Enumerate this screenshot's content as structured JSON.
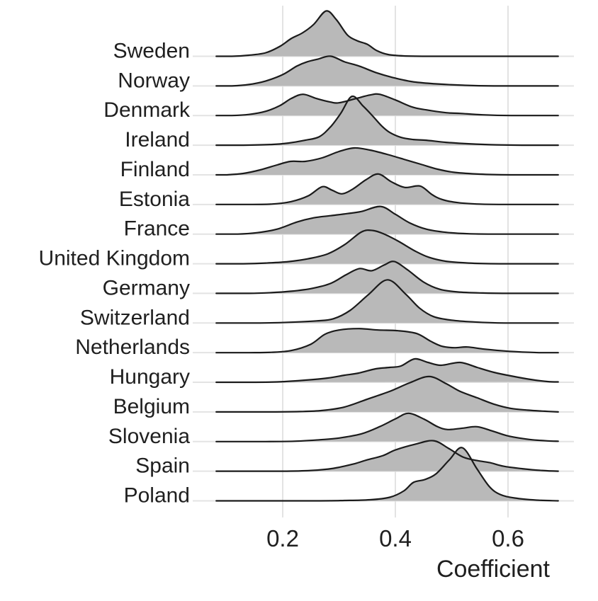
{
  "chart_data": {
    "type": "ridgeline",
    "title": "",
    "xlabel": "Coefficient",
    "ylabel": "",
    "x_axis": {
      "label": "Coefficient",
      "ticks": [
        {
          "label": "0.2",
          "value": 0.2
        },
        {
          "label": "0.4",
          "value": 0.4
        },
        {
          "label": "0.6",
          "value": 0.6
        }
      ],
      "curve_range": [
        0.082,
        0.689
      ],
      "grid": true
    },
    "legend": "none",
    "density_units": "pixel height at 844px render; one row spacing = 41.87px",
    "row_spacing_px": 41.87,
    "countries": [
      {
        "name": "Sweden",
        "peak_coefficient": 0.28,
        "density": [
          [
            0.082,
            0
          ],
          [
            0.11,
            0
          ],
          [
            0.14,
            1.5
          ],
          [
            0.17,
            5
          ],
          [
            0.195,
            14
          ],
          [
            0.215,
            25
          ],
          [
            0.235,
            33
          ],
          [
            0.255,
            45
          ],
          [
            0.277,
            64
          ],
          [
            0.295,
            52
          ],
          [
            0.315,
            30
          ],
          [
            0.332,
            22
          ],
          [
            0.35,
            17
          ],
          [
            0.367,
            8
          ],
          [
            0.387,
            2.5
          ],
          [
            0.415,
            0.5
          ],
          [
            0.46,
            0
          ],
          [
            0.57,
            0
          ],
          [
            0.689,
            0
          ]
        ]
      },
      {
        "name": "Norway",
        "peak_coefficient": 0.285,
        "density": [
          [
            0.082,
            0
          ],
          [
            0.11,
            0
          ],
          [
            0.14,
            2
          ],
          [
            0.17,
            7
          ],
          [
            0.2,
            16
          ],
          [
            0.225,
            28
          ],
          [
            0.243,
            34
          ],
          [
            0.263,
            38
          ],
          [
            0.285,
            42
          ],
          [
            0.31,
            34
          ],
          [
            0.336,
            28
          ],
          [
            0.365,
            19
          ],
          [
            0.395,
            12
          ],
          [
            0.43,
            6
          ],
          [
            0.47,
            3
          ],
          [
            0.52,
            1
          ],
          [
            0.575,
            0
          ],
          [
            0.689,
            0
          ]
        ]
      },
      {
        "name": "Denmark",
        "peak_coefficient": 0.24,
        "density": [
          [
            0.082,
            0
          ],
          [
            0.11,
            0
          ],
          [
            0.14,
            1.5
          ],
          [
            0.17,
            6
          ],
          [
            0.195,
            14
          ],
          [
            0.215,
            24
          ],
          [
            0.236,
            30
          ],
          [
            0.26,
            24
          ],
          [
            0.285,
            19
          ],
          [
            0.3,
            18
          ],
          [
            0.33,
            24
          ],
          [
            0.355,
            29
          ],
          [
            0.372,
            30
          ],
          [
            0.4,
            22
          ],
          [
            0.43,
            12
          ],
          [
            0.455,
            8
          ],
          [
            0.49,
            4
          ],
          [
            0.515,
            3
          ],
          [
            0.555,
            1
          ],
          [
            0.605,
            0
          ],
          [
            0.689,
            0
          ]
        ]
      },
      {
        "name": "Ireland",
        "peak_coefficient": 0.325,
        "density": [
          [
            0.082,
            0
          ],
          [
            0.13,
            0
          ],
          [
            0.18,
            1
          ],
          [
            0.21,
            3
          ],
          [
            0.24,
            7
          ],
          [
            0.265,
            12
          ],
          [
            0.285,
            26
          ],
          [
            0.303,
            45
          ],
          [
            0.323,
            69
          ],
          [
            0.343,
            55
          ],
          [
            0.36,
            41
          ],
          [
            0.376,
            27
          ],
          [
            0.39,
            18
          ],
          [
            0.41,
            11
          ],
          [
            0.432,
            8
          ],
          [
            0.455,
            7
          ],
          [
            0.49,
            4
          ],
          [
            0.53,
            2
          ],
          [
            0.58,
            0.5
          ],
          [
            0.625,
            0
          ],
          [
            0.689,
            0
          ]
        ]
      },
      {
        "name": "Finland",
        "peak_coefficient": 0.33,
        "density": [
          [
            0.082,
            0
          ],
          [
            0.1,
            0
          ],
          [
            0.13,
            2
          ],
          [
            0.16,
            7
          ],
          [
            0.19,
            14
          ],
          [
            0.214,
            19
          ],
          [
            0.24,
            19
          ],
          [
            0.27,
            24
          ],
          [
            0.3,
            33
          ],
          [
            0.327,
            38
          ],
          [
            0.355,
            35
          ],
          [
            0.385,
            29
          ],
          [
            0.415,
            22
          ],
          [
            0.445,
            15
          ],
          [
            0.475,
            8
          ],
          [
            0.505,
            3.5
          ],
          [
            0.55,
            1
          ],
          [
            0.605,
            0
          ],
          [
            0.689,
            0
          ]
        ]
      },
      {
        "name": "Estonia",
        "peak_coefficient": 0.37,
        "density": [
          [
            0.082,
            0
          ],
          [
            0.14,
            0
          ],
          [
            0.18,
            0.5
          ],
          [
            0.215,
            4
          ],
          [
            0.245,
            12
          ],
          [
            0.27,
            25
          ],
          [
            0.288,
            20
          ],
          [
            0.305,
            15
          ],
          [
            0.325,
            22
          ],
          [
            0.348,
            35
          ],
          [
            0.37,
            43
          ],
          [
            0.393,
            32
          ],
          [
            0.417,
            24
          ],
          [
            0.444,
            26
          ],
          [
            0.465,
            14
          ],
          [
            0.483,
            7
          ],
          [
            0.512,
            2.5
          ],
          [
            0.55,
            0.5
          ],
          [
            0.6,
            0
          ],
          [
            0.689,
            0
          ]
        ]
      },
      {
        "name": "France",
        "peak_coefficient": 0.375,
        "density": [
          [
            0.082,
            0
          ],
          [
            0.12,
            0
          ],
          [
            0.155,
            2
          ],
          [
            0.19,
            7
          ],
          [
            0.225,
            17
          ],
          [
            0.255,
            23
          ],
          [
            0.285,
            26
          ],
          [
            0.315,
            29
          ],
          [
            0.34,
            32
          ],
          [
            0.374,
            39
          ],
          [
            0.4,
            28
          ],
          [
            0.425,
            16
          ],
          [
            0.455,
            7
          ],
          [
            0.49,
            2.5
          ],
          [
            0.53,
            0.5
          ],
          [
            0.575,
            0
          ],
          [
            0.689,
            0
          ]
        ]
      },
      {
        "name": "United Kingdom",
        "peak_coefficient": 0.355,
        "density": [
          [
            0.082,
            0
          ],
          [
            0.13,
            0
          ],
          [
            0.17,
            1
          ],
          [
            0.21,
            3
          ],
          [
            0.245,
            7
          ],
          [
            0.28,
            14
          ],
          [
            0.31,
            27
          ],
          [
            0.34,
            45
          ],
          [
            0.36,
            47
          ],
          [
            0.38,
            42
          ],
          [
            0.405,
            32
          ],
          [
            0.435,
            18
          ],
          [
            0.46,
            9
          ],
          [
            0.49,
            3.5
          ],
          [
            0.53,
            1
          ],
          [
            0.585,
            0
          ],
          [
            0.689,
            0
          ]
        ]
      },
      {
        "name": "Germany",
        "peak_coefficient": 0.4,
        "density": [
          [
            0.082,
            0
          ],
          [
            0.14,
            0
          ],
          [
            0.18,
            1
          ],
          [
            0.215,
            3
          ],
          [
            0.252,
            7
          ],
          [
            0.285,
            14
          ],
          [
            0.312,
            26
          ],
          [
            0.336,
            35
          ],
          [
            0.358,
            32
          ],
          [
            0.38,
            40
          ],
          [
            0.398,
            45
          ],
          [
            0.422,
            33
          ],
          [
            0.45,
            16
          ],
          [
            0.478,
            6
          ],
          [
            0.51,
            2
          ],
          [
            0.555,
            0.5
          ],
          [
            0.605,
            0
          ],
          [
            0.689,
            0
          ]
        ]
      },
      {
        "name": "Switzerland",
        "peak_coefficient": 0.385,
        "density": [
          [
            0.082,
            0
          ],
          [
            0.16,
            0
          ],
          [
            0.21,
            1
          ],
          [
            0.26,
            3
          ],
          [
            0.29,
            6
          ],
          [
            0.32,
            18
          ],
          [
            0.352,
            40
          ],
          [
            0.386,
            61
          ],
          [
            0.418,
            41
          ],
          [
            0.443,
            21
          ],
          [
            0.468,
            9
          ],
          [
            0.5,
            4
          ],
          [
            0.54,
            1.5
          ],
          [
            0.595,
            0
          ],
          [
            0.689,
            0
          ]
        ]
      },
      {
        "name": "Netherlands",
        "peak_coefficient": 0.335,
        "density": [
          [
            0.082,
            0
          ],
          [
            0.14,
            0
          ],
          [
            0.18,
            0.5
          ],
          [
            0.215,
            3
          ],
          [
            0.25,
            12
          ],
          [
            0.275,
            26
          ],
          [
            0.3,
            32
          ],
          [
            0.335,
            34
          ],
          [
            0.37,
            32
          ],
          [
            0.405,
            31
          ],
          [
            0.438,
            27
          ],
          [
            0.463,
            16
          ],
          [
            0.483,
            9
          ],
          [
            0.505,
            7
          ],
          [
            0.528,
            8
          ],
          [
            0.558,
            5
          ],
          [
            0.6,
            2
          ],
          [
            0.655,
            0
          ],
          [
            0.689,
            0
          ]
        ]
      },
      {
        "name": "Hungary",
        "peak_coefficient": 0.435,
        "density": [
          [
            0.082,
            0
          ],
          [
            0.14,
            0
          ],
          [
            0.19,
            0.5
          ],
          [
            0.24,
            3
          ],
          [
            0.28,
            6
          ],
          [
            0.31,
            10
          ],
          [
            0.335,
            13
          ],
          [
            0.365,
            19
          ],
          [
            0.39,
            21
          ],
          [
            0.41,
            23
          ],
          [
            0.434,
            33
          ],
          [
            0.458,
            28
          ],
          [
            0.481,
            24
          ],
          [
            0.515,
            28
          ],
          [
            0.545,
            21
          ],
          [
            0.575,
            14
          ],
          [
            0.605,
            9
          ],
          [
            0.64,
            4
          ],
          [
            0.67,
            1
          ],
          [
            0.689,
            0.5
          ]
        ]
      },
      {
        "name": "Belgium",
        "peak_coefficient": 0.46,
        "density": [
          [
            0.082,
            0
          ],
          [
            0.18,
            0
          ],
          [
            0.23,
            0.5
          ],
          [
            0.27,
            2
          ],
          [
            0.31,
            7
          ],
          [
            0.35,
            18
          ],
          [
            0.39,
            29
          ],
          [
            0.425,
            41
          ],
          [
            0.46,
            50
          ],
          [
            0.49,
            40
          ],
          [
            0.515,
            29
          ],
          [
            0.545,
            20
          ],
          [
            0.575,
            11
          ],
          [
            0.605,
            5
          ],
          [
            0.635,
            2.5
          ],
          [
            0.665,
            1
          ],
          [
            0.689,
            0
          ]
        ]
      },
      {
        "name": "Slovenia",
        "peak_coefficient": 0.425,
        "density": [
          [
            0.082,
            0
          ],
          [
            0.17,
            0
          ],
          [
            0.22,
            0.5
          ],
          [
            0.265,
            2.5
          ],
          [
            0.3,
            5
          ],
          [
            0.34,
            11
          ],
          [
            0.372,
            21
          ],
          [
            0.4,
            32
          ],
          [
            0.423,
            40
          ],
          [
            0.45,
            32
          ],
          [
            0.475,
            21
          ],
          [
            0.493,
            17
          ],
          [
            0.52,
            19
          ],
          [
            0.545,
            21
          ],
          [
            0.572,
            15
          ],
          [
            0.6,
            8
          ],
          [
            0.638,
            3
          ],
          [
            0.67,
            1
          ],
          [
            0.689,
            0.5
          ]
        ]
      },
      {
        "name": "Spain",
        "peak_coefficient": 0.47,
        "density": [
          [
            0.082,
            0
          ],
          [
            0.2,
            0
          ],
          [
            0.25,
            1
          ],
          [
            0.29,
            4
          ],
          [
            0.325,
            10
          ],
          [
            0.35,
            16
          ],
          [
            0.378,
            22
          ],
          [
            0.4,
            30
          ],
          [
            0.435,
            38
          ],
          [
            0.468,
            43
          ],
          [
            0.495,
            32
          ],
          [
            0.52,
            20
          ],
          [
            0.545,
            15
          ],
          [
            0.568,
            12
          ],
          [
            0.592,
            7
          ],
          [
            0.625,
            3.5
          ],
          [
            0.66,
            1
          ],
          [
            0.689,
            0
          ]
        ]
      },
      {
        "name": "Poland",
        "peak_coefficient": 0.52,
        "density": [
          [
            0.082,
            0
          ],
          [
            0.26,
            0
          ],
          [
            0.31,
            0.5
          ],
          [
            0.355,
            1.5
          ],
          [
            0.39,
            5
          ],
          [
            0.415,
            14
          ],
          [
            0.432,
            26
          ],
          [
            0.452,
            30
          ],
          [
            0.472,
            38
          ],
          [
            0.496,
            58
          ],
          [
            0.519,
            75
          ],
          [
            0.545,
            45
          ],
          [
            0.567,
            20
          ],
          [
            0.586,
            9
          ],
          [
            0.612,
            4
          ],
          [
            0.65,
            1
          ],
          [
            0.689,
            0
          ]
        ]
      }
    ],
    "style": {
      "fill_color": "#b9b9b9",
      "line_color": "#1b1b1b",
      "grid_color": "#e3e3e3",
      "text_color": "#1f1f1f",
      "background": "#ffffff"
    }
  }
}
